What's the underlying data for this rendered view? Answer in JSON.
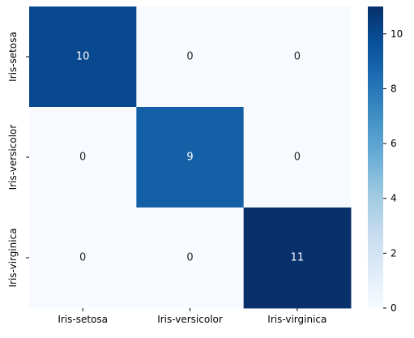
{
  "chart_data": {
    "type": "heatmap",
    "title": "",
    "xlabel": "",
    "ylabel": "",
    "x_categories": [
      "Iris-setosa",
      "Iris-versicolor",
      "Iris-virginica"
    ],
    "y_categories": [
      "Iris-setosa",
      "Iris-versicolor",
      "Iris-virginica"
    ],
    "values": [
      [
        10,
        0,
        0
      ],
      [
        0,
        9,
        0
      ],
      [
        0,
        0,
        11
      ]
    ],
    "annotations_shown": true,
    "colormap": "Blues",
    "colormap_low": "#f7fbff",
    "colormap_high": "#08306b",
    "colorbar": {
      "range": [
        0,
        11
      ],
      "ticks": [
        0,
        2,
        4,
        6,
        8,
        10
      ]
    },
    "grid": false
  }
}
